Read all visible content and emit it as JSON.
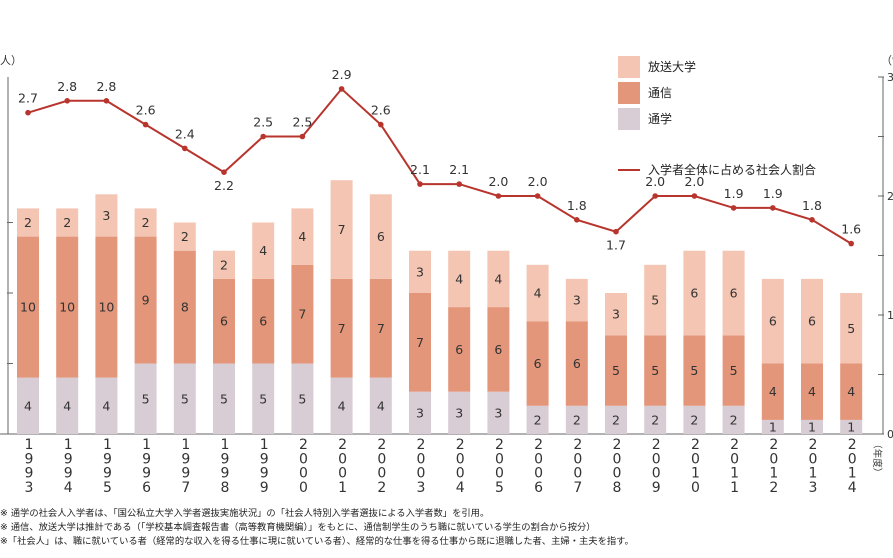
{
  "chart_data": {
    "type": "bar",
    "stacked": true,
    "title": "",
    "categories": [
      "1993",
      "1994",
      "1995",
      "1996",
      "1997",
      "1998",
      "1999",
      "2000",
      "2001",
      "2002",
      "2003",
      "2004",
      "2005",
      "2006",
      "2007",
      "2008",
      "2009",
      "2010",
      "2011",
      "2012",
      "2013",
      "2014"
    ],
    "x_suffix": "（年度）",
    "y_left_unit": "人）",
    "y_right_unit": "（%",
    "y_left_range": [
      0,
      16
    ],
    "y_right_range": [
      0,
      3
    ],
    "series": [
      {
        "name": "通学",
        "color": "#d8cdd4",
        "values": [
          4,
          4,
          4,
          5,
          5,
          5,
          5,
          5,
          4,
          4,
          3,
          3,
          3,
          2,
          2,
          2,
          2,
          2,
          2,
          1,
          1,
          1
        ]
      },
      {
        "name": "通信",
        "color": "#e3967a",
        "values": [
          10,
          10,
          10,
          9,
          8,
          6,
          6,
          7,
          7,
          7,
          7,
          6,
          6,
          6,
          6,
          5,
          5,
          5,
          5,
          4,
          4,
          4
        ]
      },
      {
        "name": "放送大学",
        "color": "#f3c5b2",
        "values": [
          2,
          2,
          3,
          2,
          2,
          2,
          4,
          4,
          7,
          6,
          3,
          4,
          4,
          4,
          3,
          3,
          5,
          6,
          6,
          6,
          6,
          5
        ]
      }
    ],
    "line": {
      "name": "入学者全体に占める社会人割合",
      "color": "#b8352e",
      "axis": "right",
      "values": [
        2.7,
        2.8,
        2.8,
        2.6,
        2.4,
        2.2,
        2.5,
        2.5,
        2.9,
        2.6,
        2.1,
        2.1,
        2.0,
        2.0,
        1.8,
        1.7,
        2.0,
        2.0,
        1.9,
        1.9,
        1.8,
        1.6
      ],
      "labels": [
        "2.7",
        "2.8",
        "2.8",
        "2.6",
        "2.4",
        "2.2",
        "2.5",
        "2.5",
        "2.9",
        "2.6",
        "2.1",
        "2.1",
        "2.0",
        "2.0",
        "1.8",
        "1.7",
        "2.0",
        "2.0",
        "1.9",
        "1.9",
        "1.8",
        "1.6"
      ]
    },
    "legend": {
      "position": "top-right",
      "items": [
        {
          "label": "放送大学",
          "kind": "box",
          "color": "#f3c5b2"
        },
        {
          "label": "通信",
          "kind": "box",
          "color": "#e3967a"
        },
        {
          "label": "通学",
          "kind": "box",
          "color": "#d8cdd4"
        },
        {
          "label": "入学者全体に占める社会人割合",
          "kind": "line",
          "color": "#b8352e"
        }
      ]
    }
  },
  "notes": {
    "note1": "※ 通学の社会人入学者は、「国公私立大学入学者選抜実施状況」の「社会人特別入学者選抜による入学者数」を引用。",
    "note2": "※ 通信、放送大学は推計である（「学校基本調査報告書（高等教育機関編）」をもとに、通信制学生のうち職に就いている学生の割合から按分）",
    "note3": "※「社会人」は、職に就いている者（経常的な収入を得る仕事に現に就いている者）、経常的な仕事を得る仕事から既に退職した者、主婦・主夫を指す。"
  }
}
